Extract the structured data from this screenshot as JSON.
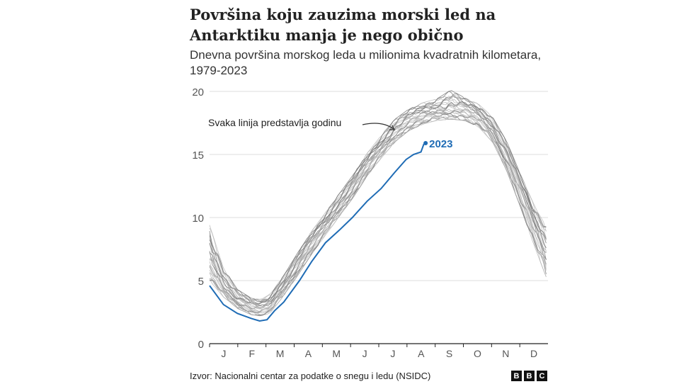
{
  "title": "Površina koju zauzima morski led na Antarktiku manja je nego obično",
  "subtitle": "Dnevna površina morskog leda u milionima kvadratnih kilometara, 1979-2023",
  "source": "Izvor: Nacionalni centar za podatke o snegu i ledu (NSIDC)",
  "logo": "BBC",
  "chart_data": {
    "type": "line",
    "title": "Površina koju zauzima morski led na Antarktiku manja je nego obično",
    "subtitle": "Dnevna površina morskog leda u milionima kvadratnih kilometara, 1979-2023",
    "xlabel": "",
    "ylabel": "",
    "x_unit": "day of year",
    "xlim": [
      0,
      365
    ],
    "ylim": [
      0,
      20
    ],
    "yticks": [
      0,
      5,
      10,
      15,
      20
    ],
    "xtick_labels": [
      "J",
      "F",
      "M",
      "A",
      "M",
      "J",
      "J",
      "A",
      "S",
      "O",
      "N",
      "D"
    ],
    "grid": true,
    "annotation": "Svaka linija predstavlja godinu",
    "colors": {
      "years": "#9a9a9a",
      "highlight": "#1f6cb5"
    },
    "years_range": {
      "x": [
        0,
        15,
        30,
        45,
        55,
        65,
        80,
        95,
        110,
        125,
        140,
        155,
        170,
        185,
        200,
        215,
        230,
        245,
        260,
        275,
        290,
        305,
        320,
        335,
        350,
        365
      ],
      "low": [
        5.0,
        3.7,
        2.8,
        2.3,
        2.2,
        2.4,
        3.8,
        5.4,
        7.1,
        8.6,
        10.1,
        11.6,
        13.3,
        14.7,
        16.0,
        16.9,
        17.4,
        17.7,
        17.8,
        17.7,
        17.2,
        16.0,
        13.8,
        10.9,
        7.8,
        4.9
      ],
      "median": [
        6.6,
        4.6,
        3.5,
        2.9,
        2.8,
        3.1,
        4.6,
        6.3,
        8.0,
        9.5,
        11.0,
        12.5,
        14.2,
        15.6,
        16.9,
        17.7,
        18.2,
        18.5,
        18.7,
        18.6,
        18.1,
        17.0,
        15.0,
        12.3,
        9.5,
        7.0
      ],
      "high": [
        9.4,
        6.0,
        4.3,
        3.6,
        3.5,
        3.9,
        5.4,
        7.2,
        8.9,
        10.4,
        11.9,
        13.4,
        15.1,
        16.5,
        17.8,
        18.6,
        19.1,
        19.4,
        20.1,
        19.5,
        19.0,
        18.0,
        16.1,
        13.5,
        11.0,
        9.0
      ]
    },
    "series": [
      {
        "name": "2023",
        "x": [
          0,
          15,
          30,
          45,
          54,
          62,
          70,
          80,
          97,
          110,
          125,
          140,
          154,
          170,
          185,
          200,
          212,
          220,
          228,
          231,
          233
        ],
        "y": [
          4.6,
          3.1,
          2.4,
          2.0,
          1.8,
          1.9,
          2.6,
          3.3,
          5.0,
          6.5,
          8.0,
          9.0,
          10.0,
          11.3,
          12.3,
          13.6,
          14.6,
          15.0,
          15.2,
          15.8,
          15.9
        ]
      }
    ]
  }
}
